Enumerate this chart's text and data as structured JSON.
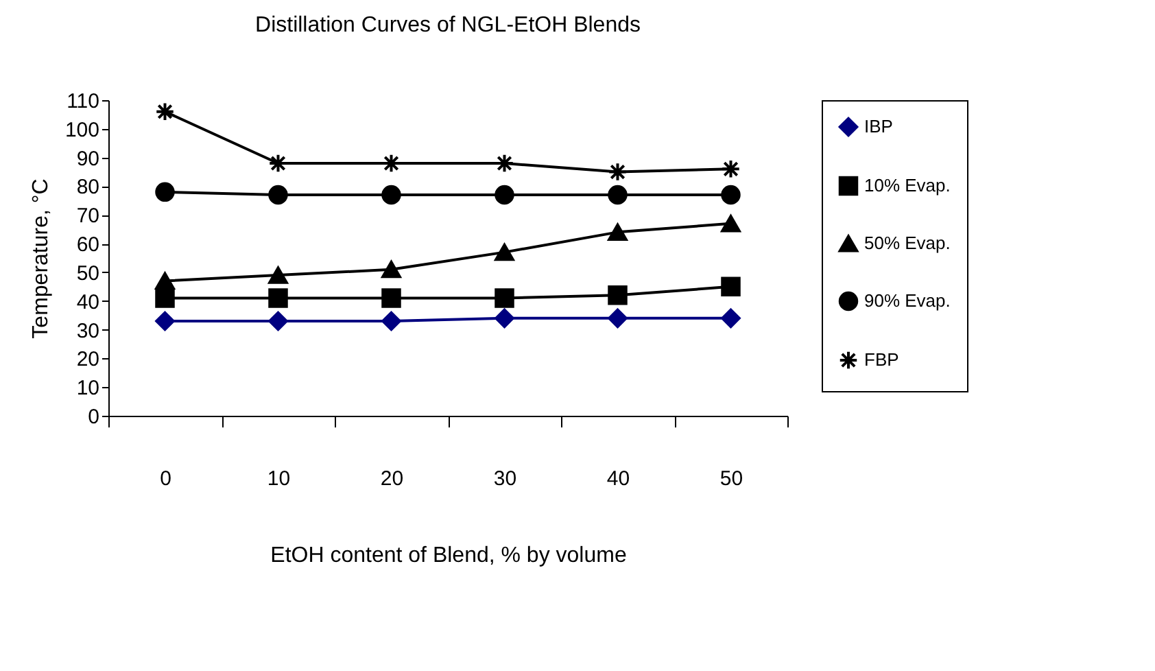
{
  "chart_data": {
    "type": "line",
    "title": "Distillation Curves of NGL-EtOH Blends",
    "xlabel": "EtOH content of Blend, % by volume",
    "ylabel": "Temperature, °C",
    "categories": [
      "0",
      "10",
      "20",
      "30",
      "40",
      "50"
    ],
    "series": [
      {
        "name": "IBP",
        "color": "#000080",
        "marker": "diamond",
        "values": [
          33,
          33,
          33,
          34,
          34,
          34
        ]
      },
      {
        "name": "10% Evap.",
        "color": "#000000",
        "marker": "square",
        "values": [
          41,
          41,
          41,
          41,
          42,
          45
        ]
      },
      {
        "name": "50% Evap.",
        "color": "#000000",
        "marker": "triangle",
        "values": [
          47,
          49,
          51,
          57,
          64,
          67
        ]
      },
      {
        "name": "90% Evap.",
        "color": "#000000",
        "marker": "circle",
        "values": [
          78,
          77,
          77,
          77,
          77,
          77
        ]
      },
      {
        "name": "FBP",
        "color": "#000000",
        "marker": "cross",
        "values": [
          106,
          88,
          88,
          88,
          85,
          86
        ]
      }
    ],
    "ylim": [
      0,
      110
    ],
    "yticks": [
      0,
      10,
      20,
      30,
      40,
      50,
      60,
      70,
      80,
      90,
      100,
      110
    ],
    "grid": false,
    "legend": "right",
    "line_style": "solid"
  }
}
